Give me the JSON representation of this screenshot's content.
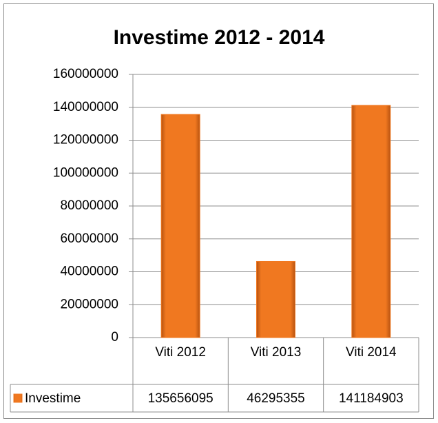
{
  "chart_data": {
    "type": "bar",
    "title": "Investime 2012 - 2014",
    "categories": [
      "Viti 2012",
      "Viti 2013",
      "Viti 2014"
    ],
    "series": [
      {
        "name": "Investime",
        "color": "#f07820",
        "values": [
          135656095,
          46295355,
          141184903
        ]
      }
    ],
    "ylim": [
      0,
      160000000
    ],
    "yticks": [
      0,
      20000000,
      40000000,
      60000000,
      80000000,
      100000000,
      120000000,
      140000000,
      160000000
    ],
    "grid": true,
    "data_table": true
  }
}
